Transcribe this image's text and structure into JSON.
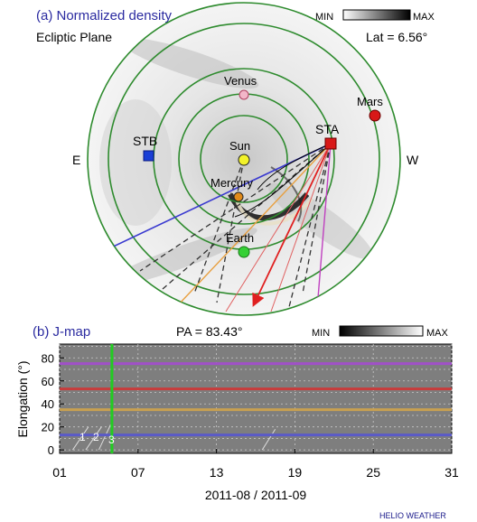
{
  "panel_a": {
    "title": "(a) Normalized density",
    "subtitle": "Ecliptic Plane",
    "lat_label": "Lat = 6.56°",
    "colorbar_min": "MIN",
    "colorbar_max": "MAX",
    "east_label": "E",
    "west_label": "W",
    "bodies": [
      {
        "label": "Sun",
        "color": "#f2f22a"
      },
      {
        "label": "Mercury",
        "color": "#e08a1a"
      },
      {
        "label": "Venus",
        "color": "#f2b6c8"
      },
      {
        "label": "Earth",
        "color": "#35d035"
      },
      {
        "label": "Mars",
        "color": "#d81818"
      },
      {
        "label": "STA",
        "color": "#d81818"
      },
      {
        "label": "STB",
        "color": "#1a3fd6"
      }
    ]
  },
  "panel_b": {
    "title": "(b) J-map",
    "pa_label": "PA = 83.43°",
    "colorbar_min": "MIN",
    "colorbar_max": "MAX",
    "track_labels": [
      "1",
      "2",
      "3"
    ]
  },
  "chart_data": {
    "type": "heatmap",
    "title": "(b) J-map",
    "xlabel": "2011-08 / 2011-09",
    "ylabel": "Elongation (°)",
    "xticks": [
      "01",
      "07",
      "13",
      "19",
      "25",
      "31"
    ],
    "yticks": [
      0,
      20,
      40,
      60,
      80
    ],
    "ylim": [
      -3,
      92
    ],
    "x_range_days": [
      1,
      31
    ],
    "reference_lines": [
      {
        "elongation": 13,
        "color": "#5a5ac8"
      },
      {
        "elongation": 35,
        "color": "#c8a050"
      },
      {
        "elongation": 53,
        "color": "#c83c3c"
      },
      {
        "elongation": 75,
        "color": "#a050c8"
      }
    ],
    "current_time_marker": {
      "day": 5,
      "color": "#22cc22"
    },
    "grid": true
  },
  "credit": "HELIO WEATHER"
}
